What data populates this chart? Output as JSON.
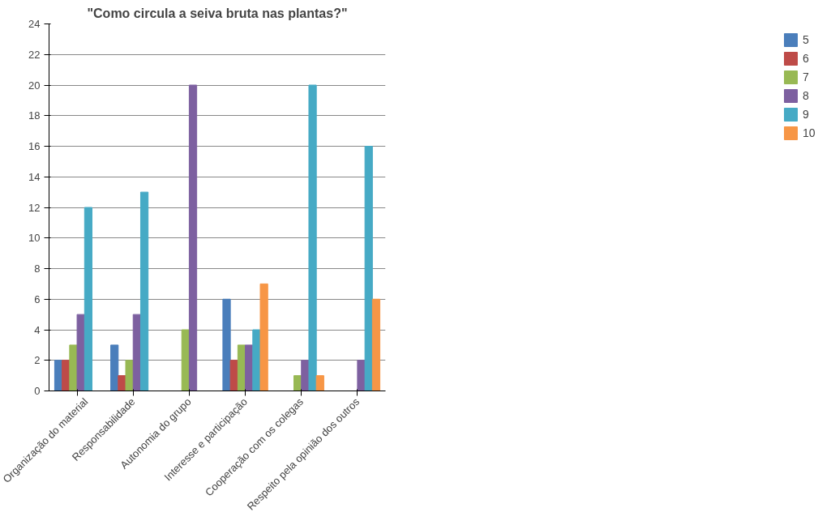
{
  "chart_data": {
    "type": "bar",
    "title": "\"Como circula a seiva bruta nas plantas?\"",
    "categories": [
      "Organização do material",
      "Responsabilidade",
      "Autonomia do grupo",
      "Interesse e participação",
      "Cooperação com os colegas",
      "Respeito pela opinião dos outros"
    ],
    "series": [
      {
        "name": "5",
        "color": "#4a7ebb",
        "values": [
          2,
          3,
          null,
          6,
          null,
          null
        ]
      },
      {
        "name": "6",
        "color": "#be4b48",
        "values": [
          2,
          1,
          null,
          2,
          null,
          null
        ]
      },
      {
        "name": "7",
        "color": "#98b954",
        "values": [
          3,
          2,
          4,
          3,
          1,
          null
        ]
      },
      {
        "name": "8",
        "color": "#7d60a0",
        "values": [
          5,
          5,
          20,
          3,
          2,
          2
        ]
      },
      {
        "name": "9",
        "color": "#46aac5",
        "values": [
          12,
          13,
          null,
          4,
          20,
          16
        ]
      },
      {
        "name": "10",
        "color": "#f79646",
        "values": [
          null,
          null,
          null,
          7,
          1,
          6
        ]
      }
    ],
    "ylim": [
      0,
      24
    ],
    "yticks": [
      0,
      2,
      4,
      6,
      8,
      10,
      12,
      14,
      16,
      18,
      20,
      22,
      24
    ],
    "grid": "y",
    "legend": "right"
  }
}
